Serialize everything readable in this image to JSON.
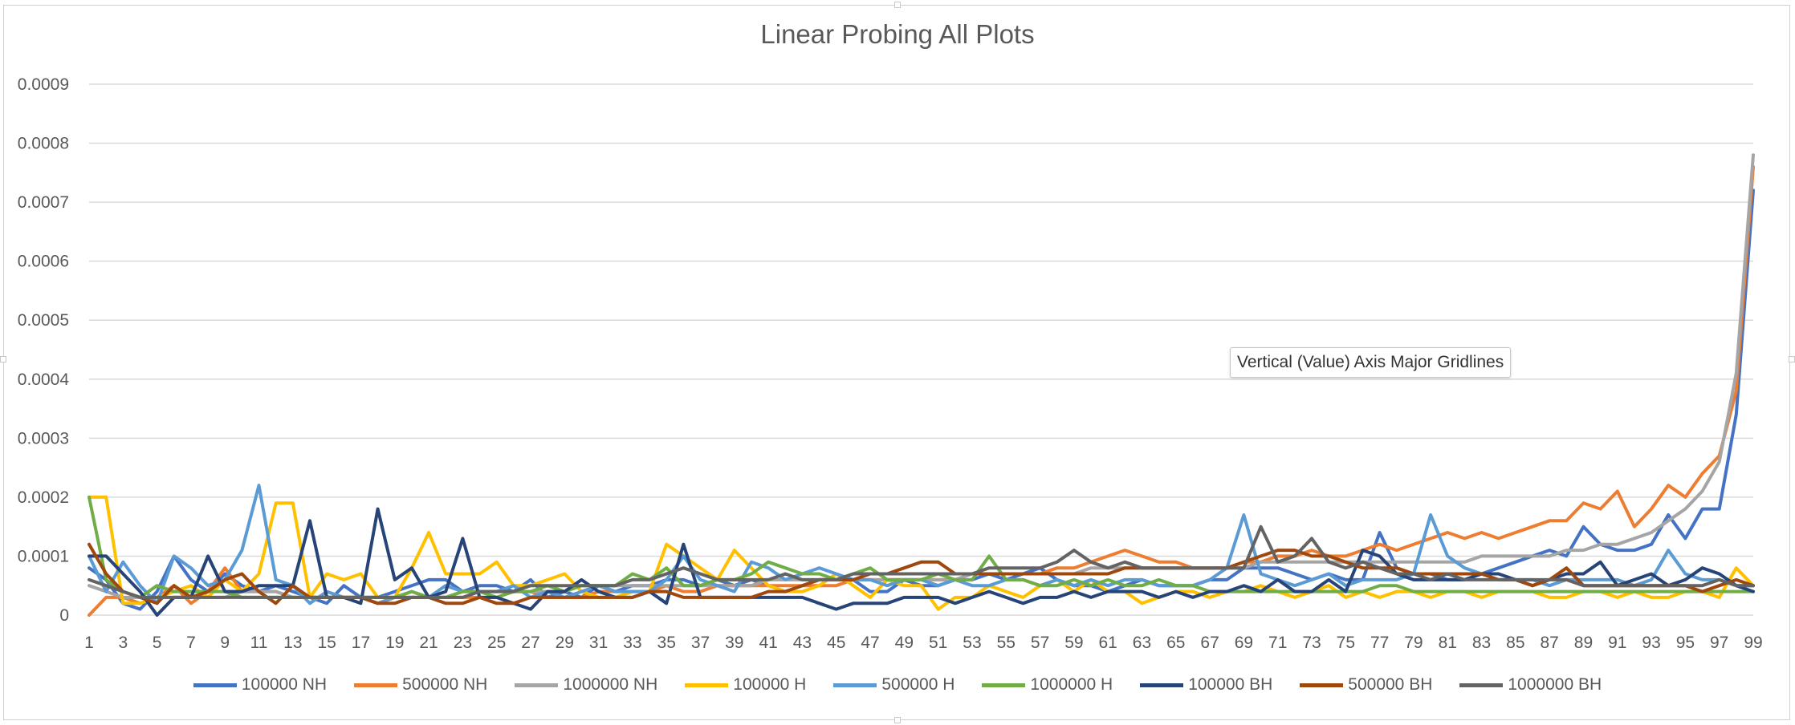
{
  "chart_data": {
    "type": "line",
    "title": "Linear Probing All Plots",
    "xlabel": "",
    "ylabel": "",
    "ylim": [
      0,
      0.0009
    ],
    "y_ticks": [
      "0",
      "0.0001",
      "0.0002",
      "0.0003",
      "0.0004",
      "0.0005",
      "0.0006",
      "0.0007",
      "0.0008",
      "0.0009"
    ],
    "y_tick_values": [
      0,
      0.0001,
      0.0002,
      0.0003,
      0.0004,
      0.0005,
      0.0006,
      0.0007,
      0.0008,
      0.0009
    ],
    "x_tick_labels": [
      "1",
      "3",
      "5",
      "7",
      "9",
      "11",
      "13",
      "15",
      "17",
      "19",
      "21",
      "23",
      "25",
      "27",
      "29",
      "31",
      "33",
      "35",
      "37",
      "39",
      "41",
      "43",
      "45",
      "47",
      "49",
      "51",
      "53",
      "55",
      "57",
      "59",
      "61",
      "63",
      "65",
      "67",
      "69",
      "71",
      "73",
      "75",
      "77",
      "79",
      "81",
      "83",
      "85",
      "87",
      "89",
      "91",
      "93",
      "95",
      "97",
      "99"
    ],
    "x_range": [
      1,
      99
    ],
    "grid": "horizontal major gridlines",
    "legend_position": "bottom",
    "series": [
      {
        "name": "100000 NH",
        "color": "#4472C4",
        "values": [
          8e-05,
          6e-05,
          2e-05,
          1e-05,
          4e-05,
          0.0001,
          6e-05,
          4e-05,
          7e-05,
          5e-05,
          4e-05,
          5e-05,
          4e-05,
          3e-05,
          2e-05,
          5e-05,
          3e-05,
          3e-05,
          4e-05,
          5e-05,
          6e-05,
          6e-05,
          4e-05,
          5e-05,
          5e-05,
          4e-05,
          6e-05,
          3e-05,
          4e-05,
          3e-05,
          5e-05,
          4e-05,
          5e-05,
          5e-05,
          6e-05,
          6e-05,
          5e-05,
          6e-05,
          5e-05,
          6e-05,
          5e-05,
          4e-05,
          5e-05,
          6e-05,
          6e-05,
          6e-05,
          4e-05,
          4e-05,
          6e-05,
          5e-05,
          5e-05,
          6e-05,
          6e-05,
          7e-05,
          6e-05,
          7e-05,
          8e-05,
          6e-05,
          5e-05,
          5e-05,
          4e-05,
          5e-05,
          6e-05,
          5e-05,
          5e-05,
          5e-05,
          6e-05,
          6e-05,
          8e-05,
          8e-05,
          8e-05,
          7e-05,
          6e-05,
          7e-05,
          6e-05,
          6e-05,
          0.00014,
          8e-05,
          7e-05,
          7e-05,
          6e-05,
          6e-05,
          7e-05,
          8e-05,
          9e-05,
          0.0001,
          0.00011,
          0.0001,
          0.00015,
          0.00012,
          0.00011,
          0.00011,
          0.00012,
          0.00017,
          0.00013,
          0.00018,
          0.00018,
          0.00034,
          0.00072
        ]
      },
      {
        "name": "500000 NH",
        "color": "#ED7D31",
        "values": [
          0.0,
          3e-05,
          3e-05,
          2e-05,
          3e-05,
          5e-05,
          2e-05,
          4e-05,
          8e-05,
          4e-05,
          4e-05,
          4e-05,
          3e-05,
          3e-05,
          3e-05,
          3e-05,
          3e-05,
          2e-05,
          3e-05,
          3e-05,
          3e-05,
          3e-05,
          3e-05,
          3e-05,
          3e-05,
          4e-05,
          4e-05,
          3e-05,
          3e-05,
          3e-05,
          4e-05,
          4e-05,
          4e-05,
          4e-05,
          5e-05,
          4e-05,
          4e-05,
          5e-05,
          5e-05,
          5e-05,
          5e-05,
          5e-05,
          5e-05,
          5e-05,
          5e-05,
          6e-05,
          6e-05,
          6e-05,
          6e-05,
          6e-05,
          6e-05,
          6e-05,
          7e-05,
          7e-05,
          7e-05,
          7e-05,
          7e-05,
          8e-05,
          8e-05,
          9e-05,
          0.0001,
          0.00011,
          0.0001,
          9e-05,
          9e-05,
          8e-05,
          8e-05,
          8e-05,
          9e-05,
          9e-05,
          0.0001,
          0.0001,
          0.00011,
          0.0001,
          0.0001,
          0.00011,
          0.00012,
          0.00011,
          0.00012,
          0.00013,
          0.00014,
          0.00013,
          0.00014,
          0.00013,
          0.00014,
          0.00015,
          0.00016,
          0.00016,
          0.00019,
          0.00018,
          0.00021,
          0.00015,
          0.00018,
          0.00022,
          0.0002,
          0.00024,
          0.00027,
          0.00038,
          0.00076
        ]
      },
      {
        "name": "1000000 NH",
        "color": "#A5A5A5",
        "values": [
          5e-05,
          4e-05,
          3e-05,
          3e-05,
          3e-05,
          3e-05,
          3e-05,
          3e-05,
          3e-05,
          4e-05,
          4e-05,
          4e-05,
          3e-05,
          3e-05,
          3e-05,
          3e-05,
          3e-05,
          3e-05,
          3e-05,
          3e-05,
          3e-05,
          3e-05,
          4e-05,
          4e-05,
          4e-05,
          4e-05,
          4e-05,
          4e-05,
          4e-05,
          5e-05,
          5e-05,
          5e-05,
          5e-05,
          5e-05,
          5e-05,
          5e-05,
          5e-05,
          5e-05,
          5e-05,
          5e-05,
          6e-05,
          6e-05,
          6e-05,
          6e-05,
          6e-05,
          6e-05,
          6e-05,
          6e-05,
          6e-05,
          6e-05,
          6e-05,
          6e-05,
          7e-05,
          7e-05,
          7e-05,
          7e-05,
          7e-05,
          7e-05,
          7e-05,
          8e-05,
          8e-05,
          8e-05,
          8e-05,
          8e-05,
          8e-05,
          8e-05,
          8e-05,
          8e-05,
          8e-05,
          9e-05,
          9e-05,
          9e-05,
          9e-05,
          9e-05,
          9e-05,
          9e-05,
          9e-05,
          9e-05,
          9e-05,
          9e-05,
          9e-05,
          9e-05,
          0.0001,
          0.0001,
          0.0001,
          0.0001,
          0.0001,
          0.00011,
          0.00011,
          0.00012,
          0.00012,
          0.00013,
          0.00014,
          0.00016,
          0.00018,
          0.00021,
          0.00026,
          0.00041,
          0.00078
        ]
      },
      {
        "name": "100000 H",
        "color": "#FFC000",
        "values": [
          0.0002,
          0.0002,
          2e-05,
          2e-05,
          3e-05,
          4e-05,
          5e-05,
          3e-05,
          6e-05,
          4e-05,
          7e-05,
          0.00019,
          0.00019,
          3e-05,
          7e-05,
          6e-05,
          7e-05,
          3e-05,
          3e-05,
          8e-05,
          0.00014,
          7e-05,
          7e-05,
          7e-05,
          9e-05,
          5e-05,
          5e-05,
          6e-05,
          7e-05,
          4e-05,
          3e-05,
          3e-05,
          4e-05,
          4e-05,
          0.00012,
          0.0001,
          8e-05,
          6e-05,
          0.00011,
          8e-05,
          5e-05,
          4e-05,
          4e-05,
          5e-05,
          7e-05,
          5e-05,
          3e-05,
          6e-05,
          5e-05,
          5e-05,
          1e-05,
          3e-05,
          3e-05,
          5e-05,
          4e-05,
          3e-05,
          5e-05,
          6e-05,
          4e-05,
          6e-05,
          4e-05,
          4e-05,
          2e-05,
          3e-05,
          4e-05,
          4e-05,
          3e-05,
          4e-05,
          4e-05,
          5e-05,
          4e-05,
          3e-05,
          4e-05,
          5e-05,
          3e-05,
          4e-05,
          3e-05,
          4e-05,
          4e-05,
          3e-05,
          4e-05,
          4e-05,
          3e-05,
          4e-05,
          4e-05,
          4e-05,
          3e-05,
          3e-05,
          4e-05,
          4e-05,
          3e-05,
          4e-05,
          3e-05,
          3e-05,
          4e-05,
          4e-05,
          3e-05,
          8e-05,
          5e-05
        ]
      },
      {
        "name": "500000 H",
        "color": "#5B9BD5",
        "values": [
          0.0001,
          4e-05,
          9e-05,
          5e-05,
          2e-05,
          0.0001,
          8e-05,
          5e-05,
          6e-05,
          0.00011,
          0.00022,
          6e-05,
          5e-05,
          2e-05,
          4e-05,
          3e-05,
          3e-05,
          2e-05,
          3e-05,
          4e-05,
          3e-05,
          5e-05,
          4e-05,
          4e-05,
          4e-05,
          5e-05,
          3e-05,
          4e-05,
          3e-05,
          4e-05,
          5e-05,
          4e-05,
          4e-05,
          4e-05,
          6e-05,
          0.0001,
          6e-05,
          5e-05,
          4e-05,
          9e-05,
          8e-05,
          6e-05,
          7e-05,
          8e-05,
          7e-05,
          6e-05,
          6e-05,
          5e-05,
          6e-05,
          6e-05,
          5e-05,
          6e-05,
          5e-05,
          5e-05,
          6e-05,
          6e-05,
          5e-05,
          6e-05,
          5e-05,
          6e-05,
          5e-05,
          6e-05,
          6e-05,
          5e-05,
          5e-05,
          5e-05,
          6e-05,
          8e-05,
          0.00017,
          7e-05,
          6e-05,
          5e-05,
          6e-05,
          7e-05,
          5e-05,
          6e-05,
          6e-05,
          6e-05,
          7e-05,
          0.00017,
          0.0001,
          8e-05,
          7e-05,
          6e-05,
          6e-05,
          6e-05,
          5e-05,
          6e-05,
          6e-05,
          6e-05,
          6e-05,
          5e-05,
          6e-05,
          0.00011,
          7e-05,
          6e-05,
          6e-05,
          5e-05,
          5e-05
        ]
      },
      {
        "name": "1000000 H",
        "color": "#70AD47",
        "values": [
          0.0002,
          6e-05,
          4e-05,
          3e-05,
          5e-05,
          4e-05,
          4e-05,
          4e-05,
          4e-05,
          3e-05,
          3e-05,
          3e-05,
          3e-05,
          3e-05,
          3e-05,
          3e-05,
          3e-05,
          3e-05,
          3e-05,
          4e-05,
          3e-05,
          3e-05,
          4e-05,
          4e-05,
          3e-05,
          4e-05,
          4e-05,
          5e-05,
          4e-05,
          5e-05,
          5e-05,
          5e-05,
          7e-05,
          6e-05,
          8e-05,
          5e-05,
          5e-05,
          6e-05,
          6e-05,
          7e-05,
          9e-05,
          8e-05,
          7e-05,
          7e-05,
          6e-05,
          7e-05,
          8e-05,
          6e-05,
          6e-05,
          6e-05,
          7e-05,
          6e-05,
          6e-05,
          0.0001,
          6e-05,
          6e-05,
          5e-05,
          5e-05,
          6e-05,
          5e-05,
          6e-05,
          5e-05,
          5e-05,
          6e-05,
          5e-05,
          5e-05,
          4e-05,
          4e-05,
          4e-05,
          4e-05,
          4e-05,
          4e-05,
          4e-05,
          4e-05,
          4e-05,
          4e-05,
          5e-05,
          5e-05,
          4e-05,
          4e-05,
          4e-05,
          4e-05,
          4e-05,
          4e-05,
          4e-05,
          4e-05,
          4e-05,
          4e-05,
          4e-05,
          4e-05,
          4e-05,
          4e-05,
          4e-05,
          4e-05,
          4e-05,
          4e-05,
          4e-05,
          4e-05,
          4e-05
        ]
      },
      {
        "name": "100000 BH",
        "color": "#264478",
        "values": [
          0.0001,
          0.0001,
          7e-05,
          4e-05,
          0.0,
          3e-05,
          3e-05,
          0.0001,
          4e-05,
          4e-05,
          5e-05,
          5e-05,
          5e-05,
          0.00016,
          3e-05,
          3e-05,
          2e-05,
          0.00018,
          6e-05,
          8e-05,
          3e-05,
          4e-05,
          0.00013,
          3e-05,
          3e-05,
          2e-05,
          1e-05,
          4e-05,
          4e-05,
          6e-05,
          4e-05,
          3e-05,
          3e-05,
          4e-05,
          2e-05,
          0.00012,
          3e-05,
          3e-05,
          3e-05,
          3e-05,
          3e-05,
          3e-05,
          3e-05,
          2e-05,
          1e-05,
          2e-05,
          2e-05,
          2e-05,
          3e-05,
          3e-05,
          3e-05,
          2e-05,
          3e-05,
          4e-05,
          3e-05,
          2e-05,
          3e-05,
          3e-05,
          4e-05,
          3e-05,
          4e-05,
          4e-05,
          4e-05,
          3e-05,
          4e-05,
          3e-05,
          4e-05,
          4e-05,
          5e-05,
          4e-05,
          6e-05,
          4e-05,
          4e-05,
          6e-05,
          4e-05,
          0.00011,
          0.0001,
          7e-05,
          6e-05,
          6e-05,
          6e-05,
          6e-05,
          7e-05,
          7e-05,
          6e-05,
          5e-05,
          6e-05,
          7e-05,
          7e-05,
          9e-05,
          5e-05,
          6e-05,
          7e-05,
          5e-05,
          6e-05,
          8e-05,
          7e-05,
          5e-05,
          4e-05
        ]
      },
      {
        "name": "500000 BH",
        "color": "#9E480E",
        "values": [
          0.00012,
          7e-05,
          4e-05,
          3e-05,
          2e-05,
          5e-05,
          3e-05,
          4e-05,
          6e-05,
          7e-05,
          4e-05,
          2e-05,
          5e-05,
          3e-05,
          3e-05,
          3e-05,
          3e-05,
          2e-05,
          2e-05,
          3e-05,
          3e-05,
          2e-05,
          2e-05,
          3e-05,
          2e-05,
          2e-05,
          3e-05,
          3e-05,
          3e-05,
          3e-05,
          3e-05,
          3e-05,
          3e-05,
          4e-05,
          4e-05,
          3e-05,
          3e-05,
          3e-05,
          3e-05,
          3e-05,
          4e-05,
          4e-05,
          5e-05,
          6e-05,
          6e-05,
          6e-05,
          7e-05,
          7e-05,
          8e-05,
          9e-05,
          9e-05,
          7e-05,
          7e-05,
          7e-05,
          7e-05,
          7e-05,
          7e-05,
          7e-05,
          7e-05,
          7e-05,
          7e-05,
          8e-05,
          8e-05,
          8e-05,
          8e-05,
          8e-05,
          8e-05,
          8e-05,
          9e-05,
          0.0001,
          0.00011,
          0.00011,
          0.0001,
          0.0001,
          9e-05,
          8e-05,
          8e-05,
          8e-05,
          7e-05,
          7e-05,
          7e-05,
          7e-05,
          7e-05,
          6e-05,
          6e-05,
          5e-05,
          6e-05,
          8e-05,
          5e-05,
          5e-05,
          5e-05,
          5e-05,
          5e-05,
          5e-05,
          5e-05,
          4e-05,
          5e-05,
          6e-05,
          5e-05
        ]
      },
      {
        "name": "1000000 BH",
        "color": "#636363",
        "values": [
          6e-05,
          5e-05,
          4e-05,
          3e-05,
          3e-05,
          3e-05,
          3e-05,
          3e-05,
          3e-05,
          3e-05,
          3e-05,
          3e-05,
          3e-05,
          3e-05,
          3e-05,
          3e-05,
          3e-05,
          3e-05,
          3e-05,
          3e-05,
          3e-05,
          3e-05,
          3e-05,
          4e-05,
          4e-05,
          4e-05,
          5e-05,
          5e-05,
          5e-05,
          5e-05,
          5e-05,
          5e-05,
          6e-05,
          6e-05,
          7e-05,
          8e-05,
          7e-05,
          6e-05,
          6e-05,
          6e-05,
          6e-05,
          7e-05,
          6e-05,
          6e-05,
          6e-05,
          7e-05,
          7e-05,
          7e-05,
          7e-05,
          7e-05,
          7e-05,
          7e-05,
          7e-05,
          8e-05,
          8e-05,
          8e-05,
          8e-05,
          9e-05,
          0.00011,
          9e-05,
          8e-05,
          9e-05,
          8e-05,
          8e-05,
          8e-05,
          8e-05,
          8e-05,
          8e-05,
          8e-05,
          0.00015,
          9e-05,
          0.0001,
          0.00013,
          9e-05,
          8e-05,
          9e-05,
          8e-05,
          7e-05,
          7e-05,
          6e-05,
          7e-05,
          6e-05,
          6e-05,
          6e-05,
          6e-05,
          6e-05,
          6e-05,
          6e-05,
          5e-05,
          5e-05,
          5e-05,
          5e-05,
          5e-05,
          5e-05,
          5e-05,
          5e-05,
          6e-05,
          5e-05,
          5e-05
        ]
      }
    ]
  },
  "tooltip": {
    "text": "Vertical (Value) Axis Major Gridlines"
  }
}
